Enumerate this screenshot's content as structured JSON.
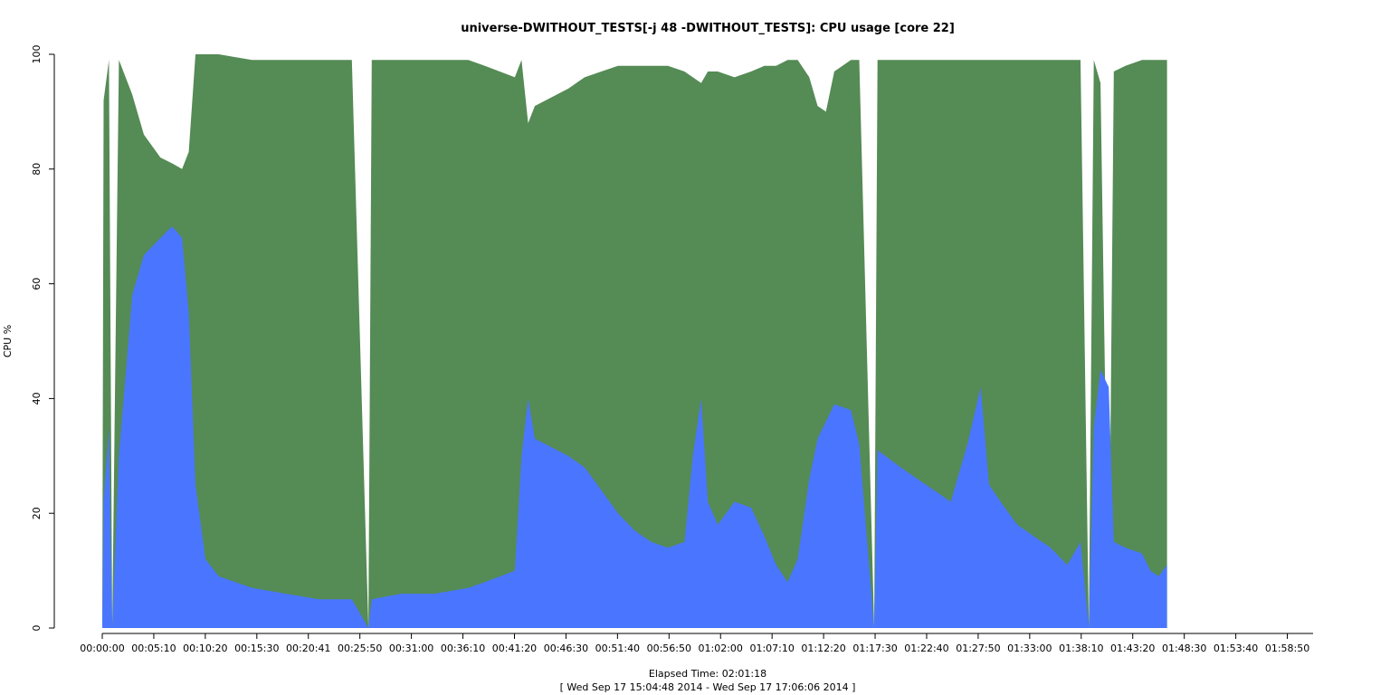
{
  "chart_data": {
    "type": "area",
    "stacked": true,
    "title": "universe-DWITHOUT_TESTS[-j 48  -DWITHOUT_TESTS]: CPU usage [core 22]",
    "xlabel": "Elapsed Time: 02:01:18",
    "xsublabel": "[ Wed Sep 17 15:04:48 2014 - Wed Sep 17 17:06:06 2014 ]",
    "ylabel": "CPU %",
    "ylim": [
      0,
      100
    ],
    "yticks": [
      0,
      20,
      40,
      60,
      80,
      100
    ],
    "x_unit": "elapsed seconds",
    "xlim": [
      0,
      7278
    ],
    "xtick_labels": [
      "00:00:00",
      "00:05:10",
      "00:10:20",
      "00:15:30",
      "00:20:41",
      "00:25:50",
      "00:31:00",
      "00:36:10",
      "00:41:20",
      "00:46:30",
      "00:51:40",
      "00:56:50",
      "01:02:00",
      "01:07:10",
      "01:12:20",
      "01:17:30",
      "01:22:40",
      "01:27:50",
      "01:33:00",
      "01:38:10",
      "01:43:20",
      "01:48:30",
      "01:53:40",
      "01:58:50"
    ],
    "grid": false,
    "series": [
      {
        "color": "#4a76ff",
        "points": [
          [
            0,
            0
          ],
          [
            8,
            22
          ],
          [
            40,
            35
          ],
          [
            60,
            0
          ],
          [
            100,
            30
          ],
          [
            180,
            58
          ],
          [
            250,
            65
          ],
          [
            350,
            68
          ],
          [
            420,
            70
          ],
          [
            480,
            68
          ],
          [
            520,
            55
          ],
          [
            560,
            25
          ],
          [
            620,
            12
          ],
          [
            700,
            9
          ],
          [
            900,
            7
          ],
          [
            1100,
            6
          ],
          [
            1300,
            5
          ],
          [
            1500,
            5
          ],
          [
            1600,
            0
          ],
          [
            1620,
            5
          ],
          [
            1800,
            6
          ],
          [
            2000,
            6
          ],
          [
            2200,
            7
          ],
          [
            2300,
            8
          ],
          [
            2480,
            10
          ],
          [
            2520,
            30
          ],
          [
            2560,
            40
          ],
          [
            2600,
            33
          ],
          [
            2800,
            30
          ],
          [
            2900,
            28
          ],
          [
            3000,
            24
          ],
          [
            3100,
            20
          ],
          [
            3200,
            17
          ],
          [
            3300,
            15
          ],
          [
            3400,
            14
          ],
          [
            3500,
            15
          ],
          [
            3550,
            30
          ],
          [
            3600,
            40
          ],
          [
            3640,
            22
          ],
          [
            3700,
            18
          ],
          [
            3800,
            22
          ],
          [
            3900,
            21
          ],
          [
            3980,
            16
          ],
          [
            4050,
            11
          ],
          [
            4120,
            8
          ],
          [
            4180,
            12
          ],
          [
            4250,
            26
          ],
          [
            4300,
            33
          ],
          [
            4350,
            36
          ],
          [
            4400,
            39
          ],
          [
            4500,
            38
          ],
          [
            4550,
            32
          ],
          [
            4640,
            0
          ],
          [
            4660,
            31
          ],
          [
            4800,
            28
          ],
          [
            4900,
            26
          ],
          [
            5000,
            24
          ],
          [
            5100,
            22
          ],
          [
            5200,
            32
          ],
          [
            5280,
            42
          ],
          [
            5330,
            25
          ],
          [
            5400,
            22
          ],
          [
            5500,
            18
          ],
          [
            5600,
            16
          ],
          [
            5700,
            14
          ],
          [
            5800,
            11
          ],
          [
            5880,
            15
          ],
          [
            5930,
            0
          ],
          [
            5960,
            35
          ],
          [
            6000,
            45
          ],
          [
            6050,
            42
          ],
          [
            6080,
            15
          ],
          [
            6150,
            14
          ],
          [
            6250,
            13
          ],
          [
            6300,
            10
          ],
          [
            6350,
            9
          ],
          [
            6400,
            11
          ]
        ]
      },
      {
        "color": "#558b55",
        "points": [
          [
            0,
            0
          ],
          [
            8,
            92
          ],
          [
            40,
            99
          ],
          [
            60,
            0
          ],
          [
            100,
            99
          ],
          [
            180,
            93
          ],
          [
            250,
            86
          ],
          [
            350,
            82
          ],
          [
            420,
            81
          ],
          [
            480,
            80
          ],
          [
            520,
            83
          ],
          [
            560,
            100
          ],
          [
            700,
            100
          ],
          [
            900,
            99
          ],
          [
            1100,
            99
          ],
          [
            1300,
            99
          ],
          [
            1500,
            99
          ],
          [
            1600,
            0
          ],
          [
            1620,
            99
          ],
          [
            1800,
            99
          ],
          [
            2000,
            99
          ],
          [
            2200,
            99
          ],
          [
            2300,
            98
          ],
          [
            2480,
            96
          ],
          [
            2520,
            99
          ],
          [
            2560,
            88
          ],
          [
            2600,
            91
          ],
          [
            2800,
            94
          ],
          [
            2900,
            96
          ],
          [
            3000,
            97
          ],
          [
            3100,
            98
          ],
          [
            3200,
            98
          ],
          [
            3300,
            98
          ],
          [
            3400,
            98
          ],
          [
            3500,
            97
          ],
          [
            3550,
            96
          ],
          [
            3600,
            95
          ],
          [
            3640,
            97
          ],
          [
            3700,
            97
          ],
          [
            3800,
            96
          ],
          [
            3900,
            97
          ],
          [
            3980,
            98
          ],
          [
            4050,
            98
          ],
          [
            4120,
            99
          ],
          [
            4180,
            99
          ],
          [
            4250,
            96
          ],
          [
            4300,
            91
          ],
          [
            4350,
            90
          ],
          [
            4400,
            97
          ],
          [
            4500,
            99
          ],
          [
            4550,
            99
          ],
          [
            4640,
            0
          ],
          [
            4660,
            99
          ],
          [
            4800,
            99
          ],
          [
            4900,
            99
          ],
          [
            5000,
            99
          ],
          [
            5100,
            99
          ],
          [
            5200,
            99
          ],
          [
            5280,
            99
          ],
          [
            5330,
            99
          ],
          [
            5400,
            99
          ],
          [
            5500,
            99
          ],
          [
            5600,
            99
          ],
          [
            5700,
            99
          ],
          [
            5800,
            99
          ],
          [
            5880,
            99
          ],
          [
            5930,
            0
          ],
          [
            5960,
            99
          ],
          [
            6000,
            95
          ],
          [
            6050,
            0
          ],
          [
            6080,
            97
          ],
          [
            6150,
            98
          ],
          [
            6250,
            99
          ],
          [
            6300,
            99
          ],
          [
            6350,
            99
          ],
          [
            6400,
            99
          ]
        ]
      }
    ]
  },
  "colors": {
    "user": "#4a76ff",
    "system": "#558b55",
    "background": "#ffffff"
  }
}
